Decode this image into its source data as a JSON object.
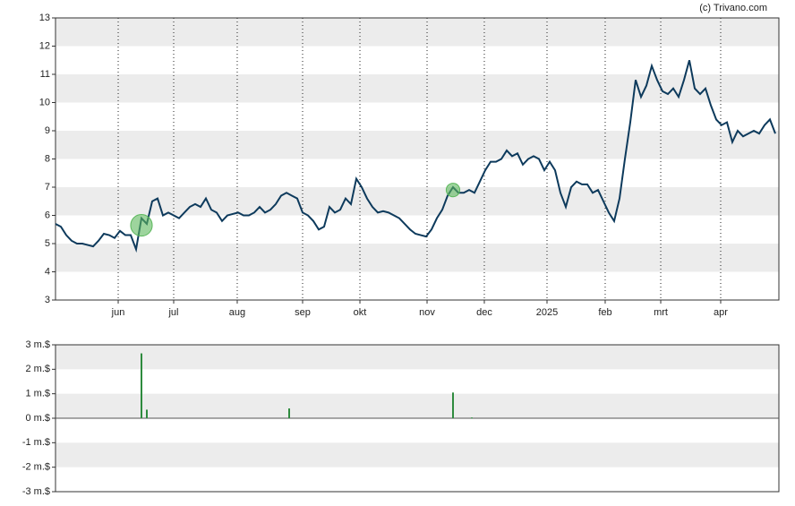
{
  "watermark": "(c) Trivano.com",
  "chart_data": [
    {
      "type": "line",
      "color": "#0d3a5c",
      "marker_color": "#5cb85c",
      "grid": true,
      "xlim": [
        0,
        134
      ],
      "ylim": [
        3,
        13
      ],
      "yticks": [
        3,
        4,
        5,
        6,
        7,
        8,
        9,
        10,
        11,
        12,
        13
      ],
      "xticks": [
        {
          "value": 11.67,
          "label": "jun"
        },
        {
          "value": 22,
          "label": "jul"
        },
        {
          "value": 33.83,
          "label": "aug"
        },
        {
          "value": 46,
          "label": "sep"
        },
        {
          "value": 56.67,
          "label": "okt"
        },
        {
          "value": 69.17,
          "label": "nov"
        },
        {
          "value": 79.83,
          "label": "dec"
        },
        {
          "value": 91.5,
          "label": "2025"
        },
        {
          "value": 102.33,
          "label": "feb"
        },
        {
          "value": 112.67,
          "label": "mrt"
        },
        {
          "value": 123.83,
          "label": "apr"
        }
      ],
      "values": [
        5.7,
        5.6,
        5.3,
        5.1,
        5.0,
        5.0,
        4.95,
        4.9,
        5.1,
        5.35,
        5.3,
        5.2,
        5.45,
        5.3,
        5.3,
        4.8,
        5.9,
        5.7,
        6.5,
        6.6,
        6.0,
        6.1,
        6.0,
        5.9,
        6.1,
        6.3,
        6.4,
        6.3,
        6.6,
        6.2,
        6.1,
        5.8,
        6.0,
        6.05,
        6.1,
        6.0,
        6.0,
        6.1,
        6.3,
        6.1,
        6.2,
        6.4,
        6.7,
        6.8,
        6.7,
        6.6,
        6.1,
        6.0,
        5.8,
        5.5,
        5.6,
        6.3,
        6.1,
        6.2,
        6.6,
        6.4,
        7.3,
        7.0,
        6.6,
        6.3,
        6.1,
        6.15,
        6.1,
        6.0,
        5.9,
        5.7,
        5.5,
        5.35,
        5.3,
        5.25,
        5.5,
        5.9,
        6.2,
        6.7,
        7.0,
        6.8,
        6.8,
        6.9,
        6.8,
        7.2,
        7.6,
        7.9,
        7.9,
        8.0,
        8.3,
        8.1,
        8.2,
        7.8,
        8.0,
        8.1,
        8.0,
        7.6,
        7.9,
        7.6,
        6.8,
        6.3,
        7.0,
        7.2,
        7.1,
        7.1,
        6.8,
        6.9,
        6.5,
        6.1,
        5.8,
        6.6,
        8.0,
        9.3,
        10.8,
        10.2,
        10.6,
        11.3,
        10.8,
        10.4,
        10.3,
        10.5,
        10.2,
        10.8,
        11.5,
        10.5,
        10.3,
        10.5,
        9.9,
        9.4,
        9.2,
        9.3,
        8.6,
        9.0,
        8.8,
        8.9,
        9.0,
        8.9,
        9.2,
        9.4,
        8.9
      ],
      "markers": {
        "x": [
          16,
          74
        ],
        "values": [
          5.65,
          6.9
        ],
        "sizes": [
          2.65,
          1.05
        ]
      }
    },
    {
      "type": "bar",
      "color": "#2e8b3e",
      "grid": true,
      "xlim": [
        0,
        134
      ],
      "ylim": [
        -3,
        3
      ],
      "yticks": [
        {
          "value": 3,
          "label": "3 m.$"
        },
        {
          "value": 2,
          "label": "2 m.$"
        },
        {
          "value": 1,
          "label": "1 m.$"
        },
        {
          "value": 0,
          "label": "0 m.$"
        },
        {
          "value": -1,
          "label": "-1 m.$"
        },
        {
          "value": -2,
          "label": "-2 m.$"
        },
        {
          "value": -3,
          "label": "-3 m.$"
        }
      ],
      "x": [
        16,
        17,
        43.5,
        74,
        77.5
      ],
      "values": [
        2.65,
        0.35,
        0.4,
        1.05,
        0.03
      ]
    }
  ]
}
